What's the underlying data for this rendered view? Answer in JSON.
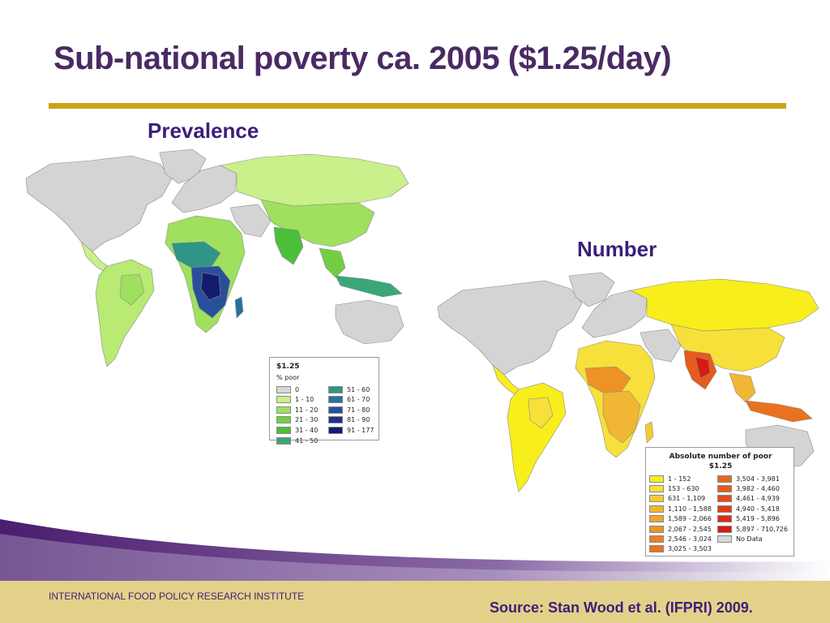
{
  "title": "Sub-national poverty ca. 2005 ($1.25/day)",
  "maps": {
    "prevalence": {
      "label": "Prevalence",
      "legend": {
        "title": "$1.25",
        "subtitle": "% poor",
        "items": [
          {
            "label": "0",
            "color": "#d7d7d7"
          },
          {
            "label": "1 - 10",
            "color": "#c9f08a"
          },
          {
            "label": "11 - 20",
            "color": "#9fe05f"
          },
          {
            "label": "21 - 30",
            "color": "#72cf43"
          },
          {
            "label": "31 - 40",
            "color": "#4cbf38"
          },
          {
            "label": "41 - 50",
            "color": "#39a77a"
          },
          {
            "label": "51 - 60",
            "color": "#2f9586"
          },
          {
            "label": "61 - 70",
            "color": "#2a6fa0"
          },
          {
            "label": "71 - 80",
            "color": "#2a4f9a"
          },
          {
            "label": "81 - 90",
            "color": "#21308a"
          },
          {
            "label": "91 - 177",
            "color": "#141c6e"
          }
        ]
      }
    },
    "number": {
      "label": "Number",
      "legend": {
        "title": "Absolute number of poor",
        "subtitle": "$1.25",
        "items": [
          {
            "label": "1 - 152",
            "color": "#f7ee1c"
          },
          {
            "label": "153 - 630",
            "color": "#f7e03a"
          },
          {
            "label": "631 - 1,109",
            "color": "#f3cc33"
          },
          {
            "label": "1,110 - 1,588",
            "color": "#f0b634"
          },
          {
            "label": "1,589 - 2,066",
            "color": "#efa42e"
          },
          {
            "label": "2,067 - 2,545",
            "color": "#ee9226"
          },
          {
            "label": "2,546 - 3,024",
            "color": "#ec8020"
          },
          {
            "label": "3,025 - 3,503",
            "color": "#ea711d"
          },
          {
            "label": "3,504 - 3,981",
            "color": "#e8681c"
          },
          {
            "label": "3,982 - 4,460",
            "color": "#e65b1b"
          },
          {
            "label": "4,461 - 4,939",
            "color": "#e34c1a"
          },
          {
            "label": "4,940 - 5,418",
            "color": "#e03a18"
          },
          {
            "label": "5,419 - 5,896",
            "color": "#dd2c16"
          },
          {
            "label": "5,897 - 710,726",
            "color": "#d51c14"
          },
          {
            "label": "No Data",
            "color": "#d7d7d7"
          }
        ]
      }
    }
  },
  "footer": {
    "institute": "INTERNATIONAL FOOD POLICY RESEARCH INSTITUTE",
    "source": "Source: Stan Wood et al. (IFPRI) 2009."
  },
  "colors": {
    "title": "#4b2a63",
    "rule": "#c8a416",
    "footer_band": "#e4d189",
    "wave_purple": "#4a1d6e"
  }
}
